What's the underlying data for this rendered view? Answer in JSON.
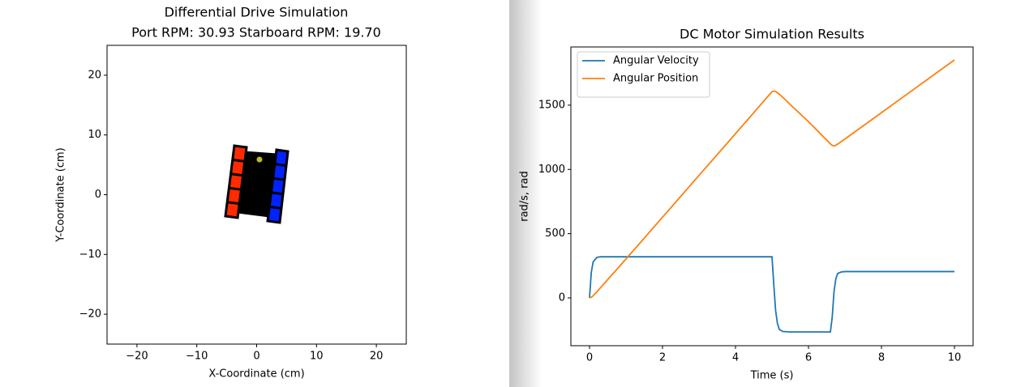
{
  "chart_data": [
    {
      "type": "polygon",
      "title": "Differential Drive Simulation",
      "subtitle": "Port RPM: 30.93 Starboard RPM: 19.70",
      "x_label": "X-Coordinate (cm)",
      "y_label": "Y-Coordinate (cm)",
      "xlim": [
        -25,
        25
      ],
      "ylim": [
        -25,
        25
      ],
      "xticks": [
        {
          "value": -20,
          "label": "−20"
        },
        {
          "value": -10,
          "label": "−10"
        },
        0,
        10,
        20
      ],
      "yticks": [
        {
          "value": -20,
          "label": "−20"
        },
        {
          "value": -10,
          "label": "−10"
        },
        0,
        10,
        20
      ],
      "body": {
        "color": "#000000",
        "points": [
          [
            -2.1,
            7.25
          ],
          [
            3.32,
            6.84
          ],
          [
            2.24,
            -3.73
          ],
          [
            -3.05,
            -3.05
          ]
        ]
      },
      "wheels": [
        {
          "color": "#ff2a00",
          "points": [
            [
              -3.73,
              8.2
            ],
            [
              -1.69,
              7.93
            ],
            [
              -3.18,
              -3.86
            ],
            [
              -5.22,
              -3.59
            ]
          ]
        },
        {
          "color": "#0022ff",
          "points": [
            [
              3.32,
              7.52
            ],
            [
              5.22,
              7.25
            ],
            [
              3.86,
              -4.67
            ],
            [
              1.83,
              -4.4
            ]
          ]
        }
      ],
      "sensor": {
        "color": "#bcbd22",
        "x": 0.47,
        "y": 5.89
      }
    },
    {
      "type": "line",
      "title": "DC Motor Simulation Results",
      "x_label": "Time (s)",
      "y_label": "rad/s, rad",
      "xlim": [
        -0.51,
        10.51
      ],
      "ylim": [
        -372,
        1953
      ],
      "xticks": [
        0,
        2,
        4,
        6,
        8,
        10
      ],
      "yticks": [
        0,
        500,
        1000,
        1500
      ],
      "legend": "upper left",
      "x": [
        0,
        0.05,
        0.1,
        0.2,
        0.3,
        0.5,
        1,
        2,
        3,
        4,
        5,
        5.05,
        5.1,
        5.15,
        5.2,
        5.3,
        5.5,
        6,
        6.6,
        6.65,
        6.7,
        6.75,
        6.8,
        6.9,
        7,
        8,
        9,
        10
      ],
      "series": [
        {
          "name": "Angular Velocity",
          "color": "#1f77b4",
          "values": [
            0,
            200,
            280,
            315,
            320,
            320,
            320,
            320,
            320,
            320,
            320,
            100,
            -100,
            -200,
            -245,
            -262,
            -265,
            -265,
            -265,
            -150,
            50,
            150,
            190,
            202,
            205,
            205,
            205,
            205
          ]
        },
        {
          "name": "Angular Position",
          "color": "#ff7f0e",
          "values": [
            0,
            5,
            17,
            47,
            79,
            143,
            303,
            628,
            953,
            1278,
            1605,
            1610,
            1606,
            1597,
            1585,
            1560,
            1505,
            1372,
            1199,
            1187,
            1183,
            1188,
            1197,
            1217,
            1237,
            1442,
            1647,
            1852
          ]
        }
      ]
    }
  ]
}
